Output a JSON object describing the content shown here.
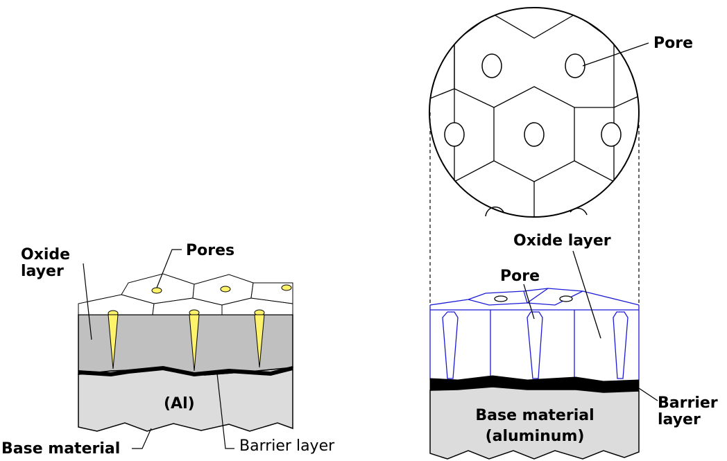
{
  "left_diagram": {
    "oxide_label_line1": "Oxide",
    "oxide_label_line2": "layer",
    "pores_label": "Pores",
    "al_label": "(Al)",
    "base_label": "Base material",
    "barrier_label": "Barrier layer"
  },
  "right_diagram": {
    "pore_top_label": "Pore",
    "oxide_label": "Oxide layer",
    "pore_label": "Pore",
    "barrier_label_line1": "Barrier",
    "barrier_label_line2": "layer",
    "base_label_line1": "Base material",
    "base_label_line2": "(aluminum)"
  },
  "colors": {
    "oxide_gray": "#c0c0c0",
    "base_gray": "#dcdcdc",
    "pore_yellow": "#fff36b",
    "cell_blue": "#1a1ad6"
  }
}
